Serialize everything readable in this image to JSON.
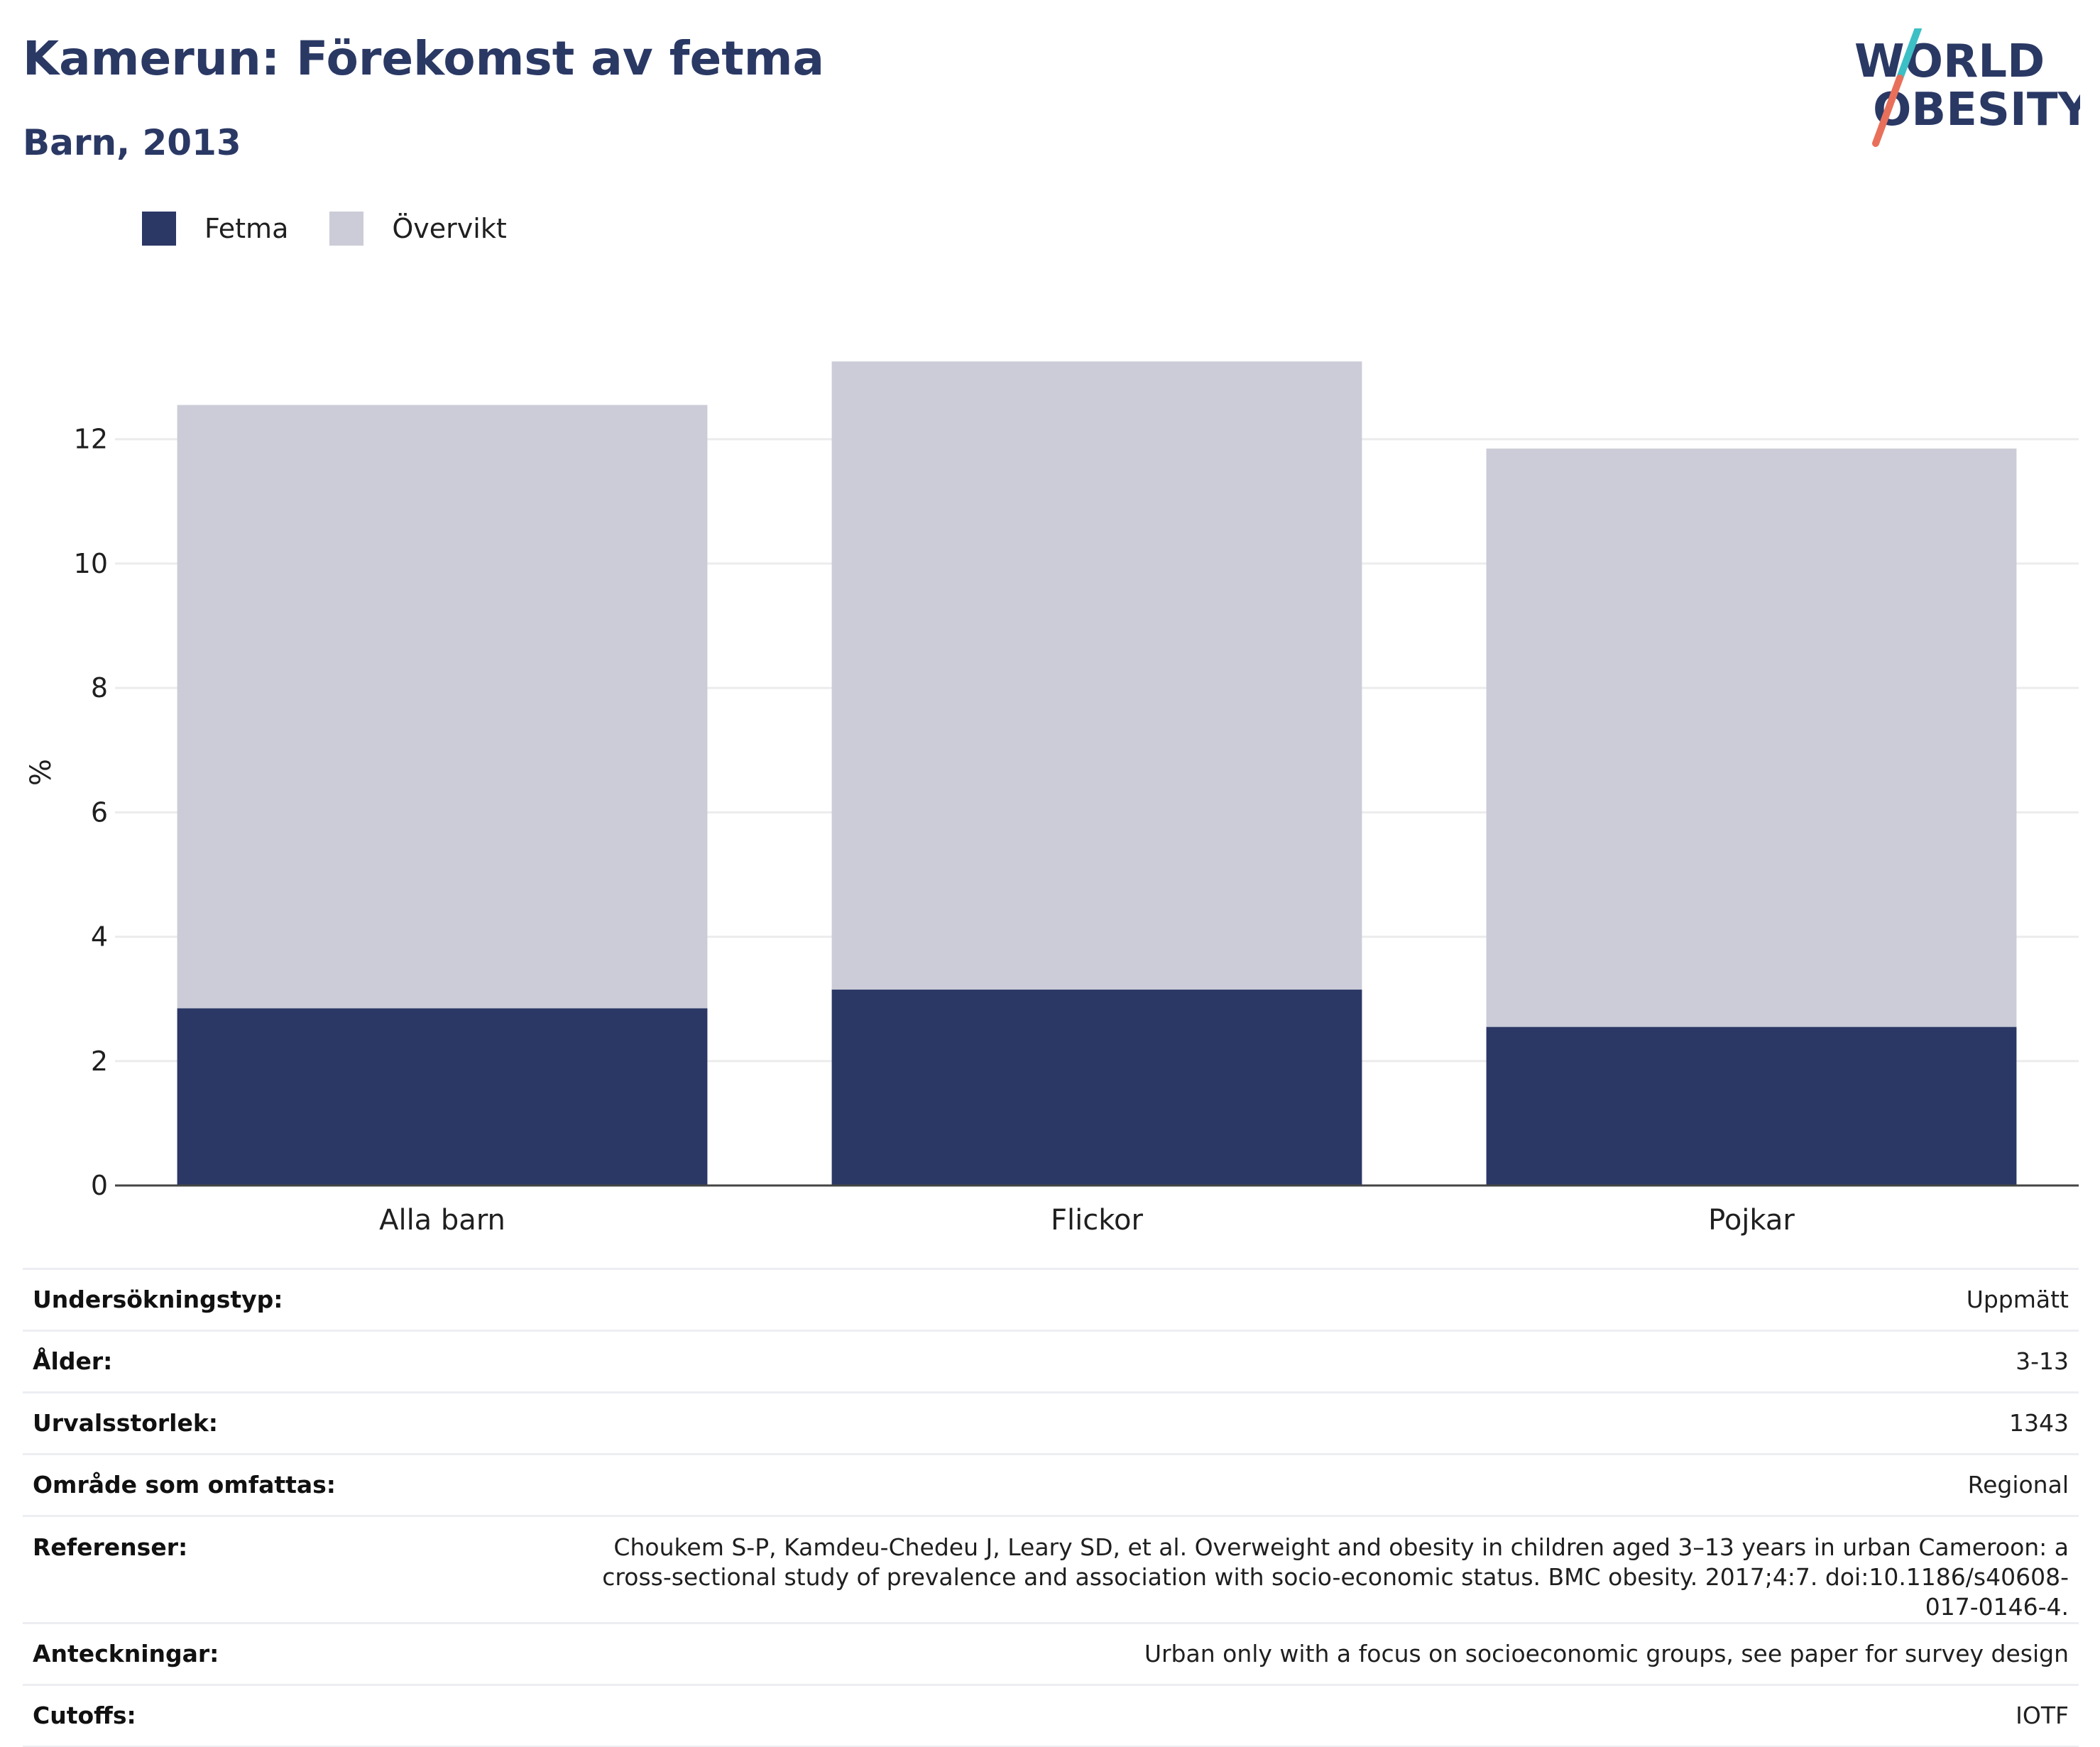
{
  "header": {
    "title": "Kamerun: Förekomst av fetma",
    "subtitle": "Barn, 2013",
    "logo_line1": "WORLD",
    "logo_line2": "OBESITY"
  },
  "colors": {
    "fetma": "#2b3765",
    "overvikt": "#cbccd7",
    "title": "#2a3864",
    "logo_text": "#2a3864",
    "logo_slash_top": "#3cbfc5",
    "logo_slash_bottom": "#e8705b",
    "grid": "#ececec",
    "axis": "#444444"
  },
  "chart_data": {
    "type": "bar",
    "stacked": true,
    "categories": [
      "Alla barn",
      "Flickor",
      "Pojkar"
    ],
    "series": [
      {
        "name": "Fetma",
        "values": [
          2.85,
          3.15,
          2.55
        ]
      },
      {
        "name": "Övervikt",
        "values": [
          9.7,
          10.1,
          9.3
        ]
      }
    ],
    "ylabel": "%",
    "ylim": [
      0,
      13.8
    ],
    "yticks": [
      0,
      2,
      4,
      6,
      8,
      10,
      12
    ],
    "grid": true,
    "legend_position": "top-left"
  },
  "info_table": [
    {
      "key": "Undersökningstyp:",
      "value": "Uppmätt"
    },
    {
      "key": "Ålder:",
      "value": "3-13"
    },
    {
      "key": "Urvalsstorlek:",
      "value": "1343"
    },
    {
      "key": "Område som omfattas:",
      "value": "Regional"
    },
    {
      "key": "Referenser:",
      "value": "Choukem S-P, Kamdeu-Chedeu J, Leary SD, et al. Overweight and obesity in children aged 3–13 years in urban Cameroon: a cross-sectional study of prevalence and association with socio-economic status. BMC obesity. 2017;4:7. doi:10.1186/s40608-017-0146-4."
    },
    {
      "key": "Anteckningar:",
      "value": "Urban only with a focus on socioeconomic groups, see paper for survey design"
    },
    {
      "key": "Cutoffs:",
      "value": "IOTF"
    }
  ]
}
